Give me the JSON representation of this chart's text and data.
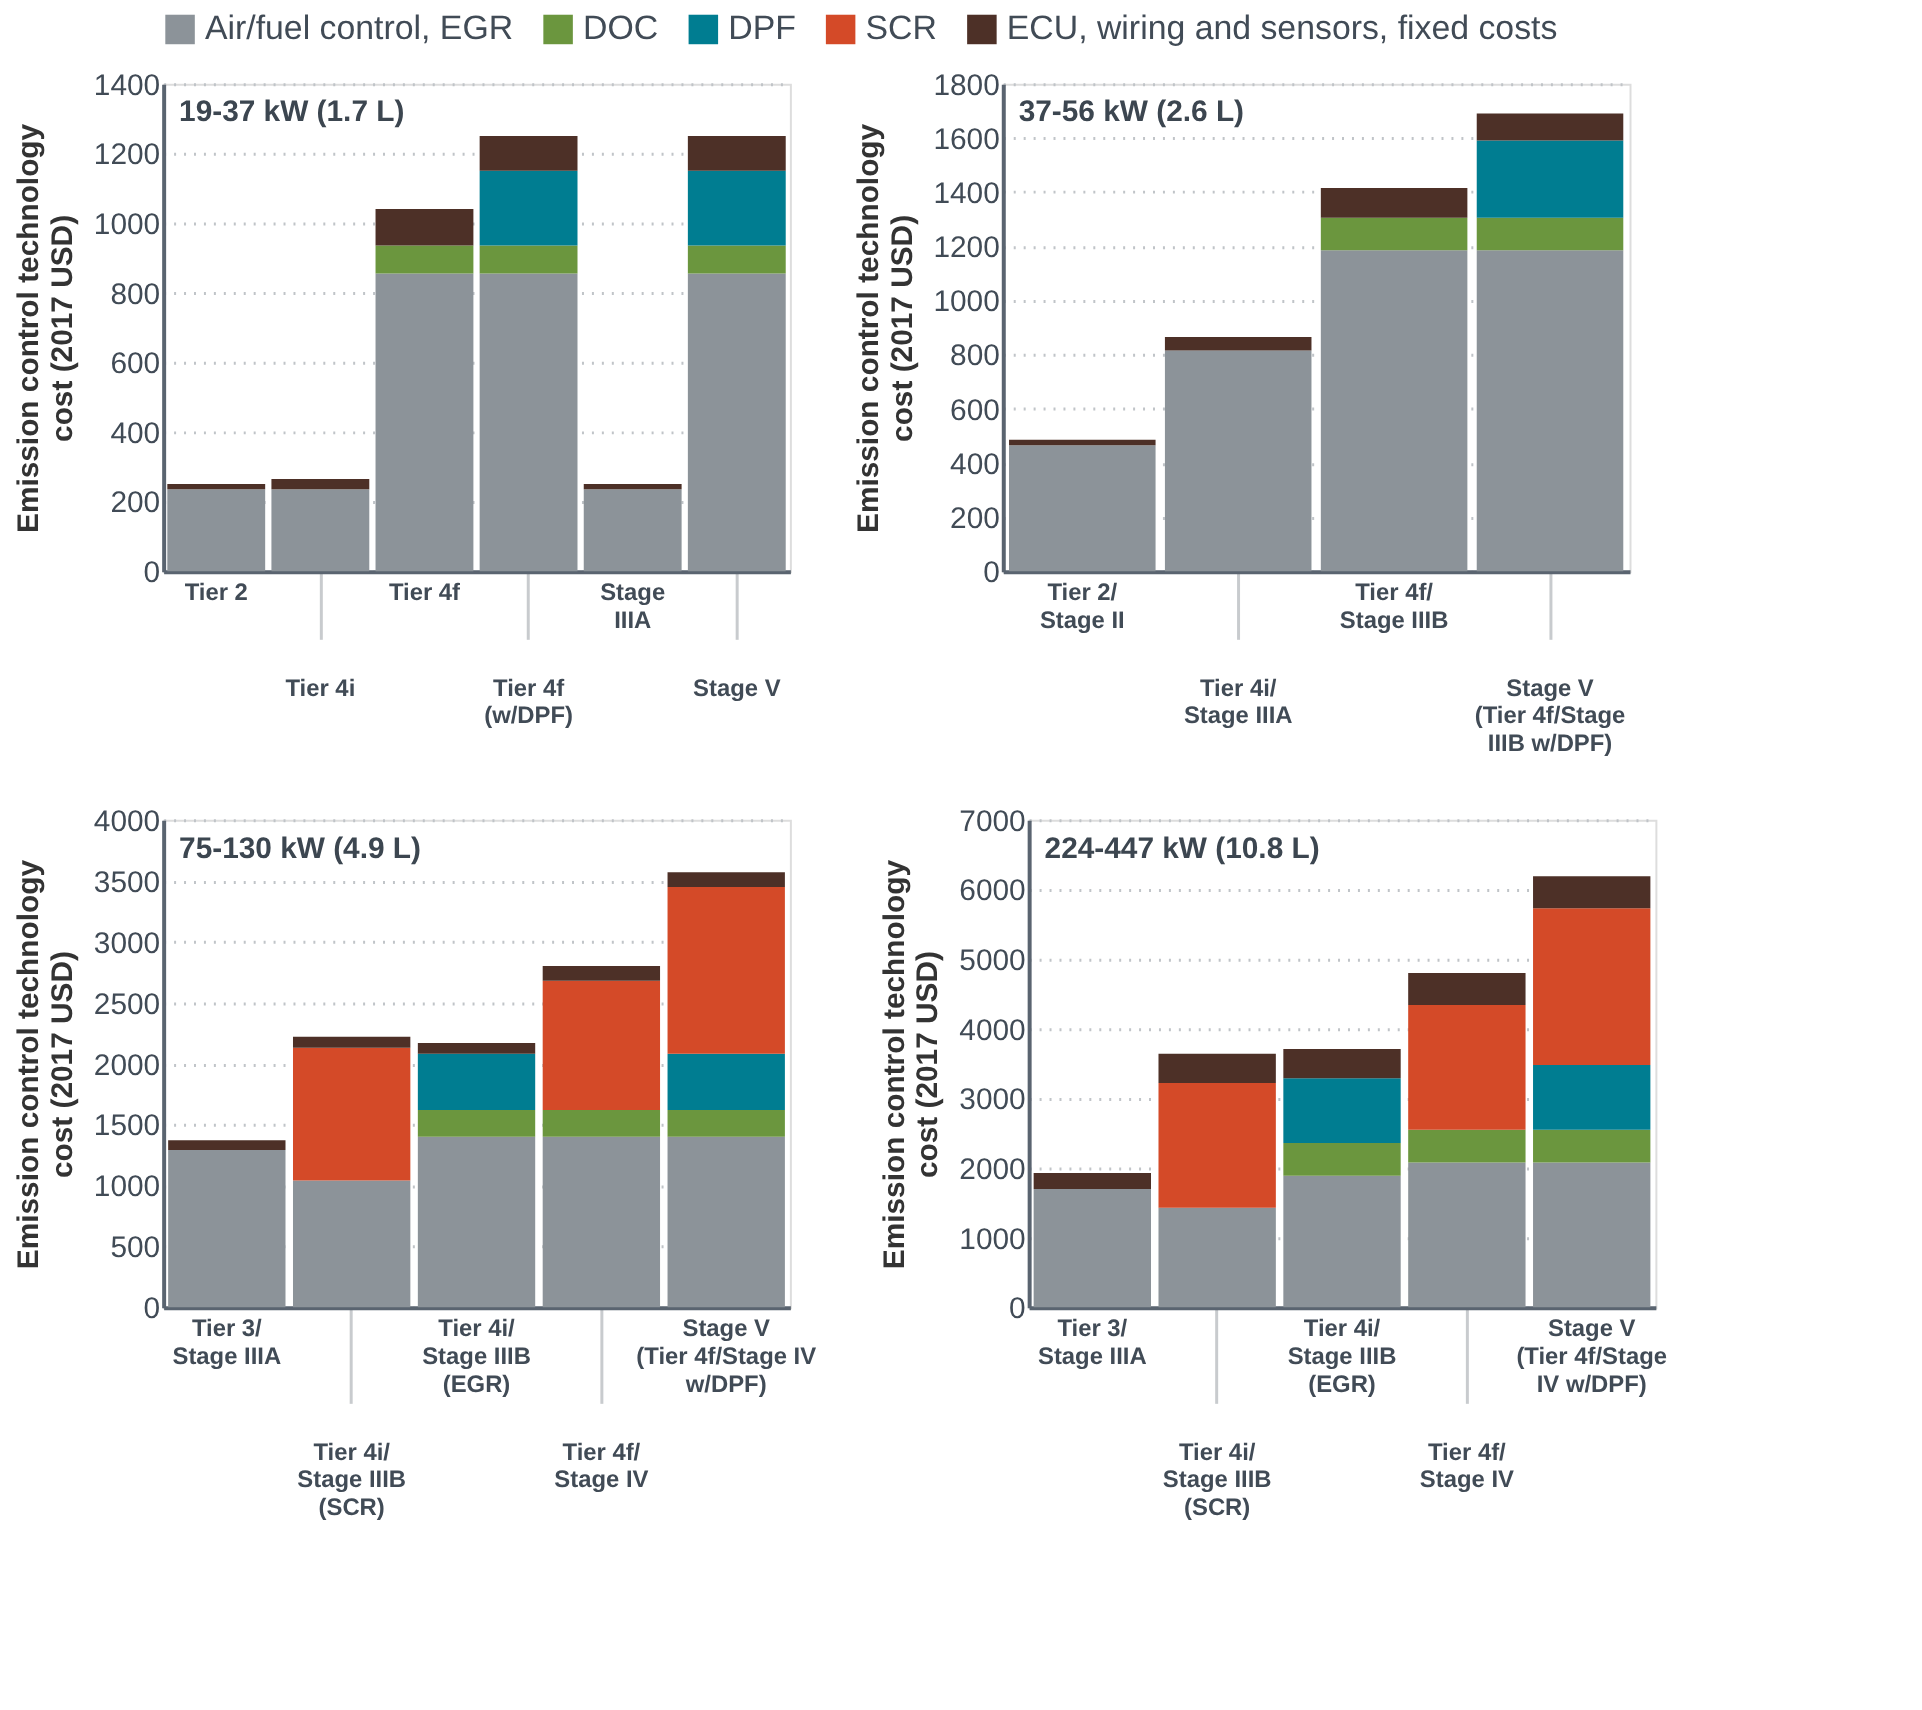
{
  "chart_data": [
    {
      "type": "bar",
      "stacked": true,
      "title": "19-37 kW (1.7 L)",
      "ylabel": "Emission control technology\ncost (2017 USD)",
      "categories": [
        "Tier 2",
        "Tier 4i",
        "Tier 4f",
        "Tier 4f\n(w/DPF)",
        "Stage\nIIIA",
        "Stage V"
      ],
      "ylim": [
        0,
        1400
      ],
      "yticks": [
        0,
        200,
        400,
        600,
        800,
        1000,
        1200,
        1400
      ],
      "grid": "y",
      "series": [
        {
          "color": "#8c9399",
          "values": [
            235,
            235,
            855,
            855,
            235,
            855
          ]
        },
        {
          "color": "#6b963e",
          "values": [
            null,
            null,
            80,
            80,
            null,
            80
          ]
        },
        {
          "color": "#007d91",
          "values": [
            null,
            null,
            null,
            215,
            null,
            215
          ]
        },
        {
          "color": "#4d3027",
          "values": [
            15,
            30,
            105,
            100,
            15,
            100
          ]
        }
      ]
    },
    {
      "type": "bar",
      "stacked": true,
      "title": "37-56 kW (2.6 L)",
      "ylabel": "Emission control technology\ncost (2017 USD)",
      "categories": [
        "Tier 2/\nStage II",
        "Tier 4i/\nStage IIIA",
        "Tier 4f/\nStage IIIB",
        "Stage V\n(Tier 4f/Stage\nIIIB w/DPF)"
      ],
      "ylim": [
        0,
        1800
      ],
      "yticks": [
        0,
        200,
        400,
        600,
        800,
        1000,
        1200,
        1400,
        1600,
        1800
      ],
      "grid": "y",
      "series": [
        {
          "color": "#8c9399",
          "values": [
            465,
            815,
            1185,
            1185
          ]
        },
        {
          "color": "#6b963e",
          "values": [
            null,
            null,
            120,
            120
          ]
        },
        {
          "color": "#007d91",
          "values": [
            null,
            null,
            null,
            285
          ]
        },
        {
          "color": "#4d3027",
          "values": [
            20,
            50,
            110,
            100
          ]
        }
      ]
    },
    {
      "type": "bar",
      "stacked": true,
      "title": "75-130 kW (4.9 L)",
      "ylabel": "Emission control technology\ncost (2017 USD)",
      "categories": [
        "Tier 3/\nStage IIIA",
        "Tier 4i/\nStage IIIB\n(SCR)",
        "Tier 4i/\nStage IIIB\n(EGR)",
        "Tier 4f/\nStage IV",
        "Stage V\n(Tier 4f/Stage IV\nw/DPF)"
      ],
      "ylim": [
        0,
        4000
      ],
      "yticks": [
        0,
        500,
        1000,
        1500,
        2000,
        2500,
        3000,
        3500,
        4000
      ],
      "grid": "y",
      "legend": "top",
      "series": [
        {
          "name": "Air/fuel control, EGR",
          "color": "#8c9399",
          "values": [
            1290,
            1040,
            1400,
            1400,
            1400
          ]
        },
        {
          "name": "DOC",
          "color": "#6b963e",
          "values": [
            null,
            null,
            220,
            220,
            220
          ]
        },
        {
          "name": "DPF",
          "color": "#007d91",
          "values": [
            null,
            null,
            460,
            null,
            460
          ]
        },
        {
          "name": "SCR",
          "color": "#d44a28",
          "values": [
            null,
            1090,
            null,
            1060,
            1370
          ]
        },
        {
          "name": "ECU, wiring and sensors, fixed costs",
          "color": "#4d3027",
          "values": [
            80,
            90,
            90,
            120,
            120
          ]
        }
      ]
    },
    {
      "type": "bar",
      "stacked": true,
      "title": "224-447 kW (10.8 L)",
      "ylabel": "Emission control technology\ncost (2017 USD)",
      "categories": [
        "Tier 3/\nStage IIIA",
        "Tier 4i/\nStage IIIB\n(SCR)",
        "Tier 4i/\nStage IIIB\n(EGR)",
        "Tier 4f/\nStage IV",
        "Stage V\n(Tier 4f/Stage\nIV w/DPF)"
      ],
      "ylim": [
        0,
        7000
      ],
      "yticks": [
        0,
        1000,
        2000,
        3000,
        4000,
        5000,
        6000,
        7000
      ],
      "grid": "y",
      "series": [
        {
          "color": "#8c9399",
          "values": [
            1700,
            1430,
            1890,
            2080,
            2080
          ]
        },
        {
          "color": "#6b963e",
          "values": [
            null,
            null,
            470,
            470,
            470
          ]
        },
        {
          "color": "#007d91",
          "values": [
            null,
            null,
            930,
            null,
            930
          ]
        },
        {
          "color": "#d44a28",
          "values": [
            null,
            1790,
            null,
            1790,
            2250
          ]
        },
        {
          "color": "#4d3027",
          "values": [
            230,
            420,
            420,
            460,
            460
          ]
        }
      ]
    }
  ]
}
